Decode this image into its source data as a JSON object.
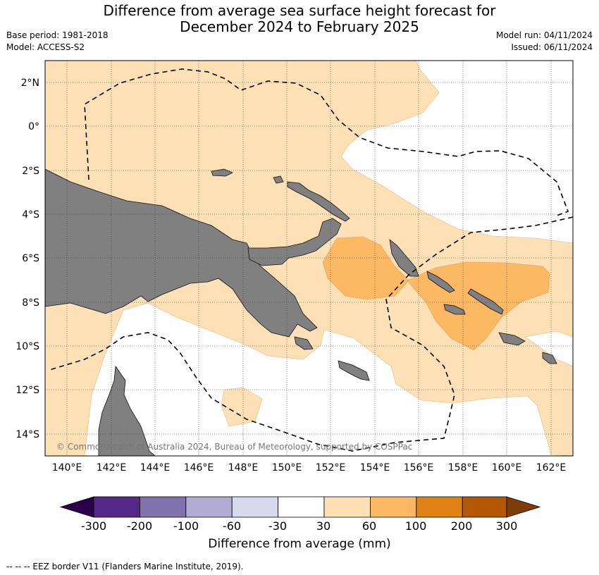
{
  "title_line1": "Difference from average sea surface height forecast for",
  "title_line2": "December 2024 to February 2025",
  "meta_left": [
    "Base period: 1981-2018",
    "Model: ACCESS-S2"
  ],
  "meta_right": [
    "Model run: 04/11/2024",
    "Issued: 06/11/2024"
  ],
  "map": {
    "lon_range": [
      139,
      163
    ],
    "lat_range": [
      -15,
      3
    ],
    "lon_ticks": [
      140,
      142,
      144,
      146,
      148,
      150,
      152,
      154,
      156,
      158,
      160,
      162
    ],
    "lon_tick_labels": [
      "140°E",
      "142°E",
      "144°E",
      "146°E",
      "148°E",
      "150°E",
      "152°E",
      "154°E",
      "156°E",
      "158°E",
      "160°E",
      "162°E"
    ],
    "lat_ticks": [
      2,
      0,
      -2,
      -4,
      -6,
      -8,
      -10,
      -12,
      -14
    ],
    "lat_tick_labels": [
      "2°N",
      "0°",
      "2°S",
      "4°S",
      "6°S",
      "8°S",
      "10°S",
      "12°S",
      "14°S"
    ],
    "land_color": "#808080",
    "credit": "© Commonwealth of Australia 2024, Bureau of Meteorology, supported by COSPPac"
  },
  "colorbar": {
    "colors": [
      "#2d004b",
      "#542788",
      "#8073ac",
      "#b2abd2",
      "#d8daeb",
      "#ffffff",
      "#fee0b6",
      "#fdb863",
      "#e08214",
      "#b35806",
      "#7f3b08"
    ],
    "tick_labels": [
      "-300",
      "-200",
      "-100",
      "-60",
      "-30",
      "30",
      "60",
      "100",
      "200",
      "300"
    ],
    "label": "Difference from average (mm)"
  },
  "footer": "--  --  -- EEZ border V11 (Flanders Marine Institute, 2019)."
}
